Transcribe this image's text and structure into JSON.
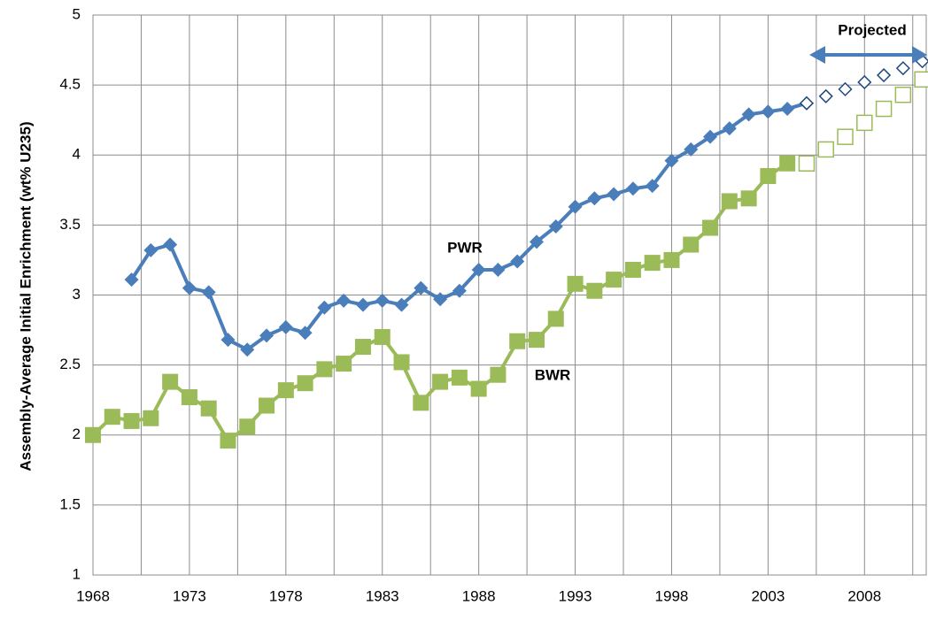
{
  "chart_data": {
    "type": "line",
    "y_label": "Assembly-Average Initial Enrichment  (wt% U235)",
    "annotation": "Projected",
    "xlim": [
      1968,
      2011.2
    ],
    "xticks": [
      1968,
      1973,
      1978,
      1983,
      1988,
      1993,
      1998,
      2003,
      2008
    ],
    "ylim": [
      1,
      5
    ],
    "yticks": [
      1,
      1.5,
      2,
      2.5,
      3,
      3.5,
      4,
      4.5,
      5
    ],
    "grid": true,
    "series": [
      {
        "name": "PWR",
        "color": "#4a7ebb",
        "marker": "diamond",
        "filled": true,
        "x": [
          1970,
          1971,
          1972,
          1973,
          1974,
          1975,
          1976,
          1977,
          1978,
          1979,
          1980,
          1981,
          1982,
          1983,
          1984,
          1985,
          1986,
          1987,
          1988,
          1989,
          1990,
          1991,
          1992,
          1993,
          1994,
          1995,
          1996,
          1997,
          1998,
          1999,
          2000,
          2001,
          2002,
          2003,
          2004,
          2005
        ],
        "values": [
          3.11,
          3.32,
          3.36,
          3.05,
          3.02,
          2.68,
          2.61,
          2.71,
          2.77,
          2.73,
          2.91,
          2.96,
          2.93,
          2.96,
          2.93,
          3.05,
          2.97,
          3.03,
          3.18,
          3.18,
          3.24,
          3.38,
          3.49,
          3.63,
          3.69,
          3.72,
          3.76,
          3.78,
          3.96,
          4.04,
          4.13,
          4.19,
          4.29,
          4.31,
          4.33,
          4.37
        ]
      },
      {
        "name": "BWR",
        "color": "#9bbb59",
        "marker": "square",
        "filled": true,
        "x": [
          1968,
          1969,
          1970,
          1971,
          1972,
          1973,
          1974,
          1975,
          1976,
          1977,
          1978,
          1979,
          1980,
          1981,
          1982,
          1983,
          1984,
          1985,
          1986,
          1987,
          1988,
          1989,
          1990,
          1991,
          1992,
          1993,
          1994,
          1995,
          1996,
          1997,
          1998,
          1999,
          2000,
          2001,
          2002,
          2003,
          2004
        ],
        "values": [
          2.0,
          2.13,
          2.1,
          2.12,
          2.38,
          2.27,
          2.19,
          1.96,
          2.06,
          2.21,
          2.32,
          2.37,
          2.47,
          2.51,
          2.63,
          2.7,
          2.52,
          2.23,
          2.38,
          2.41,
          2.33,
          2.43,
          2.67,
          2.68,
          2.83,
          3.08,
          3.03,
          3.11,
          3.18,
          3.23,
          3.25,
          3.36,
          3.48,
          3.67,
          3.69,
          3.85,
          3.94
        ]
      },
      {
        "color": "#1f497d",
        "marker": "diamond",
        "filled": false,
        "x": [
          2005,
          2006,
          2007,
          2008,
          2009,
          2010,
          2011
        ],
        "values": [
          4.37,
          4.42,
          4.47,
          4.52,
          4.57,
          4.62,
          4.67
        ]
      },
      {
        "color": "#9bbb59",
        "marker": "square",
        "filled": false,
        "x": [
          2005,
          2006,
          2007,
          2008,
          2009,
          2010,
          2011
        ],
        "values": [
          3.94,
          4.04,
          4.13,
          4.23,
          4.33,
          4.43,
          4.54
        ]
      }
    ]
  }
}
